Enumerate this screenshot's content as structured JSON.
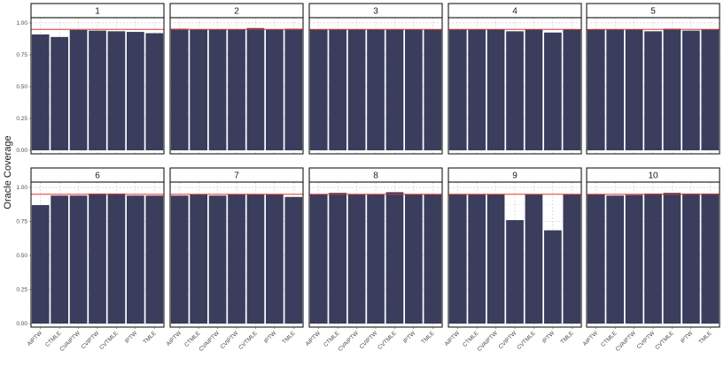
{
  "chart_data": {
    "type": "bar",
    "ylabel": "Oracle Coverage",
    "xlabel": "",
    "ylim": [
      0,
      1
    ],
    "yticks": [
      "0.00",
      "0.25",
      "0.50",
      "0.75",
      "1.00"
    ],
    "categories": [
      "AIPTW",
      "CTMLE",
      "CVAIPTW",
      "CVIPTW",
      "CVTMLE",
      "IPTW",
      "TMLE"
    ],
    "reference_line": 0.95,
    "colors": {
      "bar": "#3a3d5c",
      "reference": "#e8332a",
      "panel_border": "#1a1a1a",
      "grid": "#bdbdbd"
    },
    "panels": [
      {
        "label": "1",
        "values": [
          0.91,
          0.89,
          0.945,
          0.94,
          0.935,
          0.93,
          0.92
        ]
      },
      {
        "label": "2",
        "values": [
          0.955,
          0.95,
          0.95,
          0.95,
          0.96,
          0.95,
          0.955
        ]
      },
      {
        "label": "3",
        "values": [
          0.95,
          0.95,
          0.948,
          0.95,
          0.952,
          0.95,
          0.948
        ]
      },
      {
        "label": "4",
        "values": [
          0.95,
          0.948,
          0.95,
          0.935,
          0.95,
          0.925,
          0.948
        ]
      },
      {
        "label": "5",
        "values": [
          0.95,
          0.948,
          0.95,
          0.935,
          0.955,
          0.94,
          0.948
        ]
      },
      {
        "label": "6",
        "values": [
          0.87,
          0.94,
          0.94,
          0.955,
          0.955,
          0.94,
          0.94
        ]
      },
      {
        "label": "7",
        "values": [
          0.94,
          0.948,
          0.94,
          0.95,
          0.95,
          0.95,
          0.93
        ]
      },
      {
        "label": "8",
        "values": [
          0.95,
          0.96,
          0.95,
          0.95,
          0.965,
          0.95,
          0.95
        ]
      },
      {
        "label": "9",
        "values": [
          0.948,
          0.948,
          0.948,
          0.76,
          0.948,
          0.685,
          0.948
        ]
      },
      {
        "label": "10",
        "values": [
          0.95,
          0.94,
          0.945,
          0.955,
          0.96,
          0.955,
          0.955
        ]
      }
    ]
  }
}
